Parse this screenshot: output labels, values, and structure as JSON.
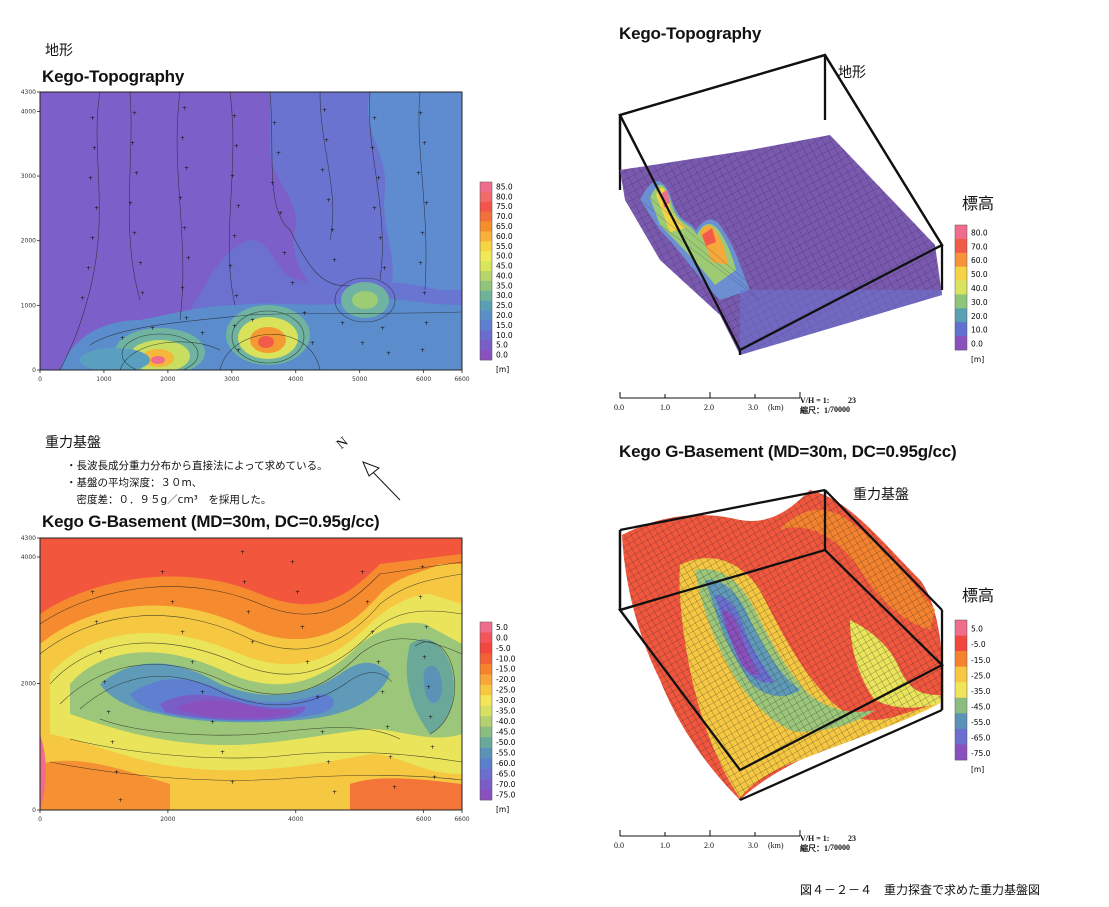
{
  "panel_tl": {
    "jp_title": "地形",
    "title": "Kego-Topography"
  },
  "panel_tr": {
    "title": "Kego-Topography",
    "jp_label": "地形",
    "legend_title": "標高"
  },
  "panel_bl": {
    "jp_title": "重力基盤",
    "notes": [
      "・長波長成分重力分布から直接法によって求めている。",
      "・基盤の平均深度：３０m、",
      "　密度差：０．９５g／cm³　を採用した。"
    ],
    "north": "N",
    "title": "Kego G-Basement (MD=30m, DC=0.95g/cc)"
  },
  "panel_br": {
    "title": "Kego G-Basement (MD=30m, DC=0.95g/cc)",
    "jp_label": "重力基盤",
    "legend_title": "標高"
  },
  "figure_caption": "図４－２－４　重力探査で求めた重力基盤図",
  "scalebar": {
    "ticks": [
      "0.0",
      "1.0",
      "2.0",
      "3.0"
    ],
    "unit": "(km)",
    "vh": "V/H = 1:",
    "vh_val": "23",
    "ratio": "縮尺：1/",
    "ratio_val": "70000"
  },
  "chart_data": [
    {
      "type": "heatmap",
      "title": "Kego-Topography",
      "x_ticks": [
        "0",
        "1000",
        "2000",
        "3000",
        "4000",
        "5000",
        "6000",
        "6600"
      ],
      "y_ticks": [
        "0",
        "1000",
        "2000",
        "3000",
        "4000",
        "4300"
      ],
      "legend": {
        "unit": "[m]",
        "labels": [
          "85.0",
          "80.0",
          "75.0",
          "70.0",
          "65.0",
          "60.0",
          "55.0",
          "50.0",
          "45.0",
          "40.0",
          "35.0",
          "30.0",
          "25.0",
          "20.0",
          "15.0",
          "10.0",
          "5.0",
          "0.0"
        ],
        "colors": [
          "#f06c8c",
          "#f26b6b",
          "#f2554a",
          "#f2703a",
          "#f58f2e",
          "#f8b13a",
          "#f6d542",
          "#f0ea58",
          "#d9e55c",
          "#b6d66a",
          "#8fc57b",
          "#6eb397",
          "#5aa0b4",
          "#5a8fc8",
          "#5f7fd0",
          "#6a6dcf",
          "#7a5ec8",
          "#8a51be"
        ]
      }
    },
    {
      "type": "heatmap",
      "title": "Kego G-Basement (MD=30m, DC=0.95g/cc)",
      "x_ticks": [
        "0",
        "2000",
        "4000",
        "6000",
        "6600"
      ],
      "y_ticks": [
        "0",
        "2000",
        "4000",
        "4300"
      ],
      "legend": {
        "unit": "[m]",
        "labels": [
          "5.0",
          "0.0",
          "-5.0",
          "-10.0",
          "-15.0",
          "-20.0",
          "-25.0",
          "-30.0",
          "-35.0",
          "-40.0",
          "-45.0",
          "-50.0",
          "-55.0",
          "-60.0",
          "-65.0",
          "-70.0",
          "-75.0"
        ],
        "colors": [
          "#f06c8c",
          "#f2555c",
          "#f2473e",
          "#f26236",
          "#f5832e",
          "#f8a53a",
          "#f6c842",
          "#f4e65a",
          "#d8e064",
          "#b5d070",
          "#8cbd80",
          "#6aa99a",
          "#5a92b8",
          "#5a80cc",
          "#6a6fd0",
          "#7a5ec8",
          "#8a51be"
        ]
      }
    },
    {
      "type": "surface",
      "title": "Kego-Topography",
      "legend": {
        "title": "標高",
        "unit": "[m]",
        "labels": [
          "80.0",
          "70.0",
          "60.0",
          "50.0",
          "40.0",
          "30.0",
          "20.0",
          "10.0",
          "0.0"
        ],
        "colors": [
          "#f06c8c",
          "#f25a4a",
          "#f6923a",
          "#f4d444",
          "#d8e45e",
          "#8fc57b",
          "#5aa0b4",
          "#6270d0",
          "#8a51be"
        ]
      }
    },
    {
      "type": "surface",
      "title": "Kego G-Basement (MD=30m, DC=0.95g/cc)",
      "legend": {
        "title": "標高",
        "unit": "[m]",
        "labels": [
          "5.0",
          "-5.0",
          "-15.0",
          "-25.0",
          "-35.0",
          "-45.0",
          "-55.0",
          "-65.0",
          "-75.0"
        ],
        "colors": [
          "#f06c8c",
          "#f2473e",
          "#f5832e",
          "#f6c842",
          "#f0e45a",
          "#8cbd80",
          "#5a92b8",
          "#6a6fd0",
          "#8a51be"
        ]
      }
    }
  ]
}
